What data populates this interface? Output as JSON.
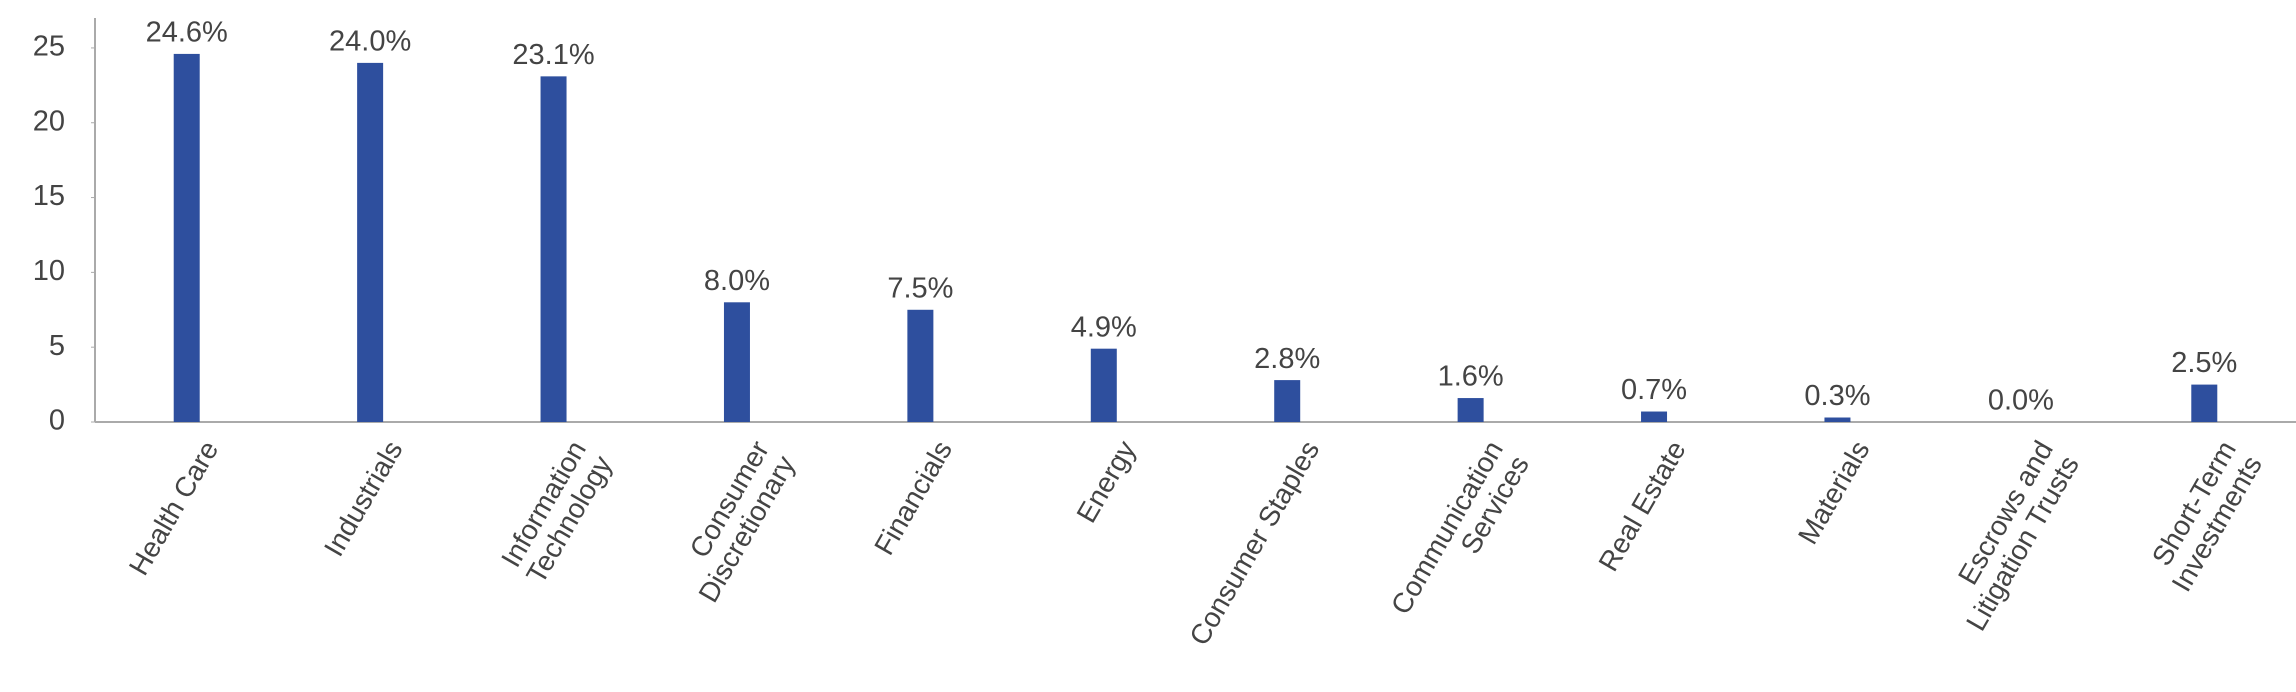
{
  "chart_data": {
    "type": "bar",
    "categories": [
      "Health Care",
      "Industrials",
      "Information Technology",
      "Consumer Discretionary",
      "Financials",
      "Energy",
      "Consumer Staples",
      "Communication Services",
      "Real Estate",
      "Materials",
      "Escrows and Litigation Trusts",
      "Short-Term Investments"
    ],
    "values": [
      24.6,
      24.0,
      23.1,
      8.0,
      7.5,
      4.9,
      2.8,
      1.6,
      0.7,
      0.3,
      0.0,
      2.5
    ],
    "value_labels": [
      "24.6%",
      "24.0%",
      "23.1%",
      "8.0%",
      "7.5%",
      "4.9%",
      "2.8%",
      "1.6%",
      "0.7%",
      "0.3%",
      "0.0%",
      "2.5%"
    ],
    "color": "#2e4f9e",
    "ylim": [
      0,
      27
    ],
    "yticks": [
      0,
      5,
      10,
      15,
      20,
      25
    ],
    "grid": false
  }
}
